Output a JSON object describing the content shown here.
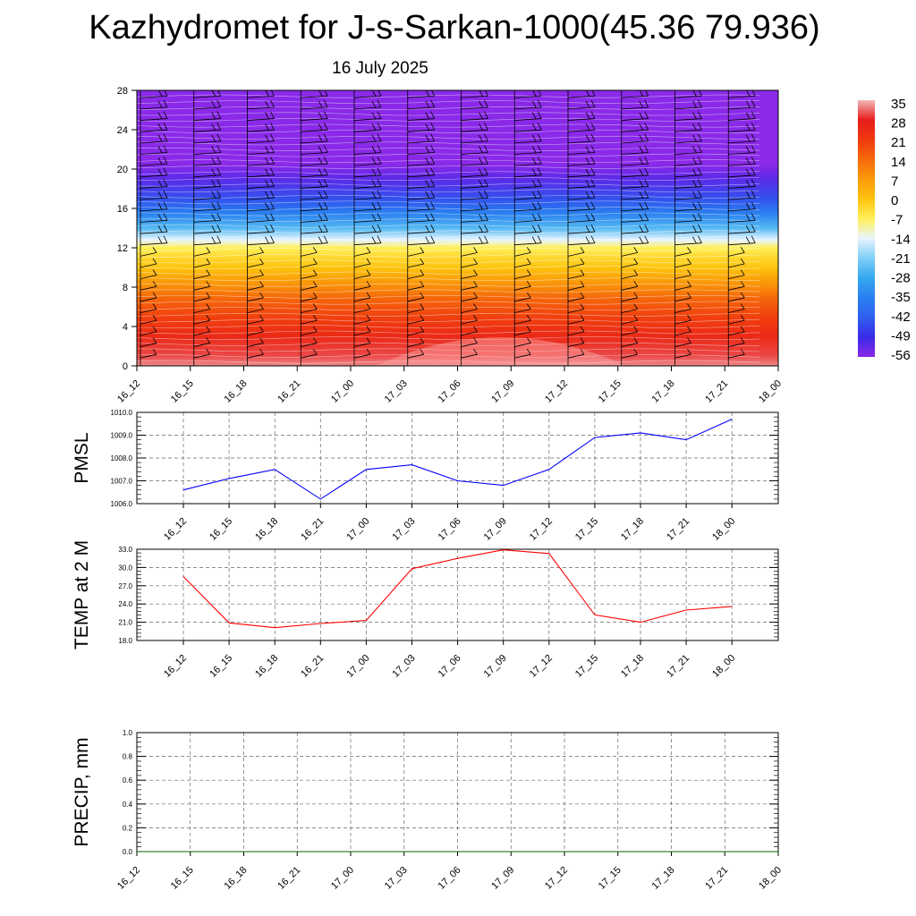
{
  "title": "Kazhydromet for J-s-Sarkan-1000(45.36 79.936)",
  "subtitle": "16 July 2025",
  "chart_data": [
    {
      "type": "heatmap",
      "name": "temperature-height-section",
      "x_categories": [
        "16_12",
        "16_15",
        "16_18",
        "16_21",
        "17_00",
        "17_03",
        "17_06",
        "17_09",
        "17_12",
        "17_15",
        "17_18",
        "17_21",
        "18_00"
      ],
      "y_ticks": [
        0,
        4,
        8,
        12,
        16,
        20,
        24,
        28
      ],
      "ylim": [
        0,
        28
      ],
      "colorbar": {
        "labels": [
          "35",
          "28",
          "21",
          "14",
          "7",
          "0",
          "-7",
          "-14",
          "-21",
          "-28",
          "-35",
          "-42",
          "-49",
          "-56"
        ],
        "colors": [
          "#f2b6b6",
          "#e81c1c",
          "#f03a0f",
          "#f56a0a",
          "#fa9a0a",
          "#fdc40e",
          "#fff05a",
          "#e8f4ff",
          "#7fd0f8",
          "#33a8f0",
          "#2a80f0",
          "#3060f0",
          "#3a2ae8",
          "#8a2ae8"
        ]
      },
      "profile_levels": [
        0,
        1,
        3,
        5,
        7,
        8,
        9,
        10,
        11,
        12,
        12.8,
        14,
        15.5,
        17,
        19,
        20.5,
        21.5,
        23,
        25,
        28
      ],
      "profile_temps": [
        33,
        30,
        25,
        20,
        14,
        9,
        5,
        0,
        -3,
        -7,
        -14,
        -25,
        -35,
        -44,
        -52,
        -58,
        -60,
        -58,
        -57,
        -57
      ],
      "wind_barbs": true
    },
    {
      "type": "line",
      "name": "PMSL",
      "ylabel": "PMSL",
      "categories": [
        "16_12",
        "16_15",
        "16_18",
        "16_21",
        "17_00",
        "17_03",
        "17_06",
        "17_09",
        "17_12",
        "17_15",
        "17_18",
        "17_21",
        "18_00"
      ],
      "values": [
        1006.6,
        1007.1,
        1007.5,
        1006.2,
        1007.5,
        1007.7,
        1007.0,
        1006.8,
        1007.5,
        1008.9,
        1009.1,
        1008.8,
        1009.7
      ],
      "ylim": [
        1006.0,
        1010.0
      ],
      "y_ticks": [
        "1006.0",
        "1007.0",
        "1008.0",
        "1009.0",
        "1010.0"
      ],
      "grid": true,
      "line_color": "#0000ff"
    },
    {
      "type": "line",
      "name": "TEMP at 2 M",
      "ylabel": "TEMP at 2 M",
      "categories": [
        "16_12",
        "16_15",
        "16_18",
        "16_21",
        "17_00",
        "17_03",
        "17_06",
        "17_09",
        "17_12",
        "17_15",
        "17_18",
        "17_21",
        "18_00"
      ],
      "values": [
        28.5,
        20.9,
        20.1,
        20.8,
        21.3,
        29.8,
        31.5,
        32.9,
        32.3,
        22.2,
        21.0,
        23.0,
        23.6
      ],
      "ylim": [
        18.0,
        33.0
      ],
      "y_ticks": [
        "18.0",
        "21.0",
        "24.0",
        "27.0",
        "30.0",
        "33.0"
      ],
      "grid": true,
      "line_color": "#ff0000"
    },
    {
      "type": "line",
      "name": "PRECIP, mm",
      "ylabel": "PRECIP, mm",
      "categories": [
        "16_12",
        "16_15",
        "16_18",
        "16_21",
        "17_00",
        "17_03",
        "17_06",
        "17_09",
        "17_12",
        "17_15",
        "17_18",
        "17_21",
        "18_00"
      ],
      "values": [
        0,
        0,
        0,
        0,
        0,
        0,
        0,
        0,
        0,
        0,
        0,
        0,
        0
      ],
      "ylim": [
        0.0,
        1.0
      ],
      "y_ticks": [
        "0.0",
        "0.2",
        "0.4",
        "0.6",
        "0.8",
        "1.0"
      ],
      "grid": true,
      "line_color": "#006400"
    }
  ]
}
